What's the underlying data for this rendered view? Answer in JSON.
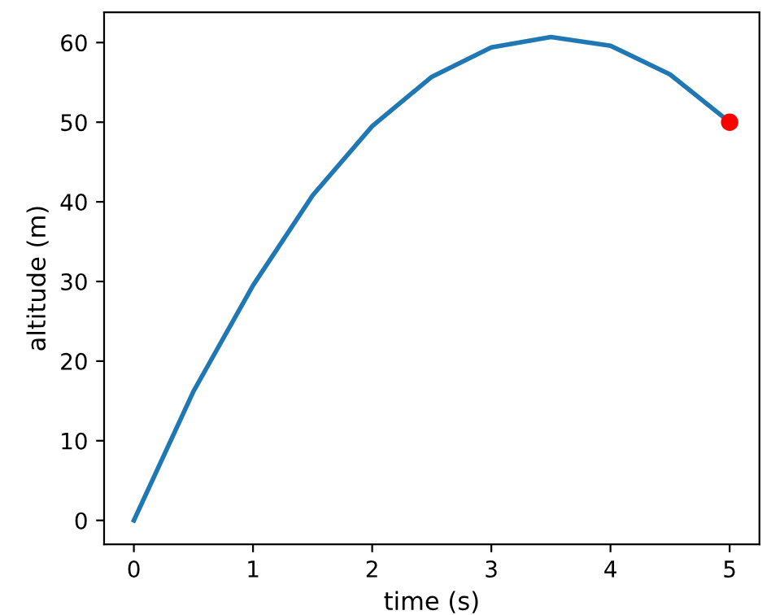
{
  "chart_data": {
    "type": "line",
    "xlabel": "time (s)",
    "ylabel": "altitude (m)",
    "x": [
      0,
      0.5,
      1,
      1.5,
      2,
      2.5,
      3,
      3.5,
      4,
      4.5,
      5
    ],
    "series": [
      {
        "color": "#1f77b4",
        "values": [
          0,
          16.2,
          29.5,
          40.8,
          49.5,
          55.7,
          59.4,
          60.7,
          59.6,
          56.0,
          50.0
        ]
      },
      {
        "type": "scatter",
        "color": "#ff0000",
        "x": [
          5
        ],
        "values": [
          50.0
        ],
        "marker": "circle"
      }
    ],
    "xlim": [
      -0.25,
      5.25
    ],
    "ylim": [
      -3.0,
      63.8
    ],
    "xticks": [
      0,
      1,
      2,
      3,
      4,
      5
    ],
    "yticks": [
      0,
      10,
      20,
      30,
      40,
      50,
      60
    ],
    "grid": false,
    "legend": false
  }
}
